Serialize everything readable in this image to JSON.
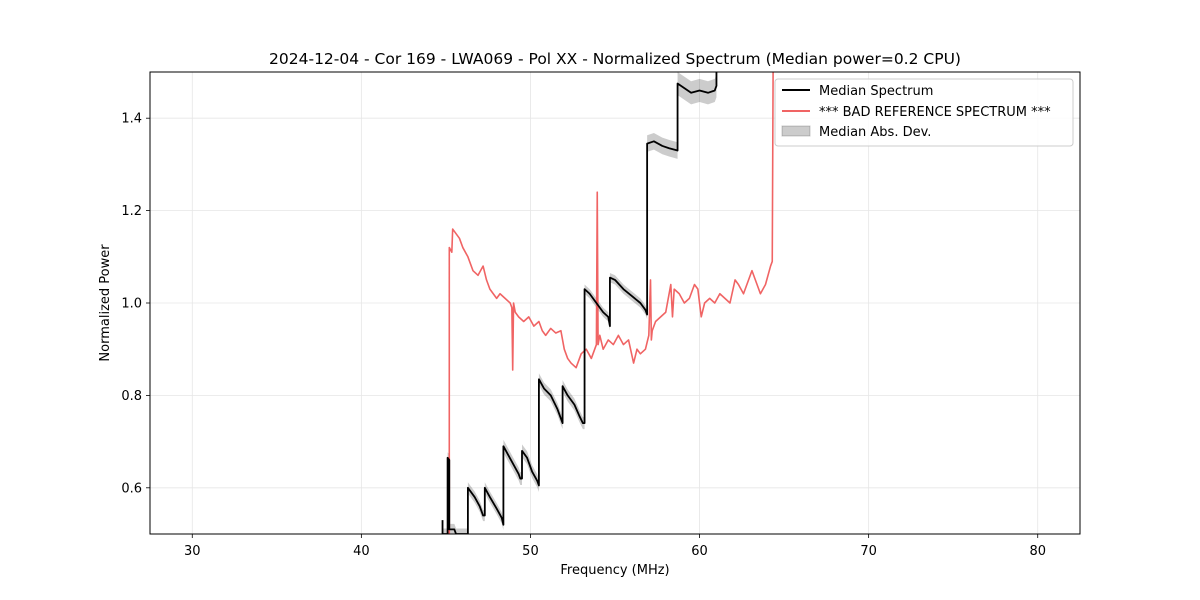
{
  "chart_data": {
    "type": "line",
    "title": "2024-12-04 - Cor 169 - LWA069 - Pol XX - Normalized Spectrum (Median power=0.2 CPU)",
    "xlabel": "Frequency (MHz)",
    "ylabel": "Normalized Power",
    "xlim": [
      27.5,
      82.5
    ],
    "ylim": [
      0.5,
      1.5
    ],
    "xticks": [
      30,
      40,
      50,
      60,
      70,
      80
    ],
    "xtick_labels": [
      "30",
      "40",
      "50",
      "60",
      "70",
      "80"
    ],
    "yticks": [
      0.6,
      0.8,
      1.0,
      1.2,
      1.4
    ],
    "ytick_labels": [
      "0.6",
      "0.8",
      "1.0",
      "1.2",
      "1.4"
    ],
    "grid": true,
    "legend": {
      "position": "top-right",
      "entries": [
        "Median Spectrum",
        "*** BAD REFERENCE SPECTRUM ***",
        "Median Abs. Dev."
      ]
    },
    "series": [
      {
        "name": "Median Spectrum",
        "color": "#000000",
        "x": [
          44.8,
          44.8,
          45.1,
          45.1,
          45.2,
          45.2,
          45.5,
          45.6,
          45.9,
          46.2,
          46.3,
          46.3,
          46.7,
          47.0,
          47.2,
          47.3,
          47.3,
          47.6,
          48.0,
          48.3,
          48.4,
          48.4,
          48.7,
          49.0,
          49.3,
          49.4,
          49.5,
          49.5,
          49.8,
          50.1,
          50.4,
          50.5,
          50.5,
          50.8,
          51.2,
          51.6,
          51.9,
          51.9,
          52.2,
          52.6,
          52.9,
          53.1,
          53.2,
          53.2,
          53.5,
          53.9,
          54.3,
          54.6,
          54.7,
          54.7,
          55.0,
          55.5,
          56.0,
          56.5,
          56.8,
          56.9,
          56.9,
          57.3,
          57.8,
          58.2,
          58.7,
          58.7,
          59.1,
          59.5,
          60.0,
          60.5,
          60.9,
          61.0,
          61.0
        ],
        "y": [
          0.53,
          0.5,
          0.5,
          0.665,
          0.66,
          0.51,
          0.51,
          0.5,
          0.5,
          0.5,
          0.5,
          0.6,
          0.58,
          0.56,
          0.54,
          0.54,
          0.6,
          0.58,
          0.555,
          0.535,
          0.52,
          0.69,
          0.67,
          0.65,
          0.63,
          0.62,
          0.62,
          0.68,
          0.665,
          0.635,
          0.615,
          0.605,
          0.835,
          0.815,
          0.8,
          0.77,
          0.74,
          0.82,
          0.8,
          0.78,
          0.755,
          0.74,
          0.74,
          1.03,
          1.02,
          1.0,
          0.98,
          0.97,
          0.95,
          1.055,
          1.05,
          1.03,
          1.015,
          1.0,
          0.985,
          0.975,
          1.345,
          1.35,
          1.34,
          1.335,
          1.33,
          1.475,
          1.465,
          1.455,
          1.46,
          1.455,
          1.46,
          1.47,
          1.5
        ],
        "mad_width": [
          0.012,
          0.012,
          0.012,
          0.012,
          0.012,
          0.012,
          0.012,
          0.012,
          0.012,
          0.012,
          0.012,
          0.012,
          0.012,
          0.012,
          0.012,
          0.012,
          0.012,
          0.012,
          0.012,
          0.012,
          0.012,
          0.014,
          0.014,
          0.014,
          0.014,
          0.014,
          0.014,
          0.014,
          0.014,
          0.014,
          0.014,
          0.014,
          0.013,
          0.013,
          0.013,
          0.013,
          0.013,
          0.013,
          0.013,
          0.013,
          0.013,
          0.013,
          0.013,
          0.01,
          0.01,
          0.01,
          0.01,
          0.01,
          0.01,
          0.01,
          0.01,
          0.01,
          0.01,
          0.01,
          0.01,
          0.01,
          0.018,
          0.018,
          0.018,
          0.018,
          0.018,
          0.025,
          0.025,
          0.025,
          0.025,
          0.025,
          0.025,
          0.025,
          0.025
        ]
      },
      {
        "name": "*** BAD REFERENCE SPECTRUM ***",
        "color": "#f06464",
        "x": [
          45.1,
          45.2,
          45.2,
          45.35,
          45.4,
          45.6,
          45.8,
          46.0,
          46.3,
          46.6,
          46.9,
          47.2,
          47.4,
          47.6,
          47.8,
          48.0,
          48.2,
          48.5,
          48.8,
          48.9,
          48.95,
          49.0,
          49.1,
          49.3,
          49.6,
          49.9,
          50.2,
          50.5,
          50.7,
          50.9,
          51.2,
          51.5,
          51.8,
          52.0,
          52.2,
          52.4,
          52.7,
          53.0,
          53.3,
          53.6,
          53.8,
          53.9,
          53.95,
          54.0,
          54.1,
          54.3,
          54.6,
          54.9,
          55.2,
          55.5,
          55.8,
          56.1,
          56.3,
          56.5,
          56.8,
          57.0,
          57.1,
          57.15,
          57.2,
          57.4,
          57.7,
          58.0,
          58.3,
          58.4,
          58.5,
          58.8,
          59.1,
          59.4,
          59.7,
          59.9,
          60.1,
          60.3,
          60.6,
          60.9,
          61.2,
          61.5,
          61.8,
          62.1,
          62.3,
          62.6,
          62.9,
          63.1,
          63.3,
          63.6,
          63.9,
          64.2,
          64.3,
          64.35
        ],
        "y": [
          0.5,
          0.5,
          1.12,
          1.11,
          1.16,
          1.15,
          1.14,
          1.12,
          1.1,
          1.07,
          1.06,
          1.08,
          1.05,
          1.03,
          1.02,
          1.01,
          1.02,
          1.01,
          1.0,
          0.99,
          0.855,
          1.0,
          0.98,
          0.97,
          0.96,
          0.97,
          0.95,
          0.96,
          0.94,
          0.93,
          0.945,
          0.935,
          0.94,
          0.9,
          0.88,
          0.87,
          0.86,
          0.89,
          0.9,
          0.88,
          0.9,
          0.91,
          1.24,
          0.91,
          0.93,
          0.9,
          0.92,
          0.91,
          0.93,
          0.91,
          0.92,
          0.87,
          0.9,
          0.89,
          0.9,
          0.93,
          1.05,
          0.92,
          0.94,
          0.96,
          0.97,
          0.98,
          1.04,
          0.97,
          1.03,
          1.02,
          1.0,
          1.01,
          1.04,
          1.03,
          0.97,
          1.0,
          1.01,
          1.0,
          1.02,
          1.01,
          1.0,
          1.05,
          1.04,
          1.02,
          1.05,
          1.07,
          1.05,
          1.02,
          1.04,
          1.08,
          1.09,
          1.5
        ]
      }
    ]
  }
}
